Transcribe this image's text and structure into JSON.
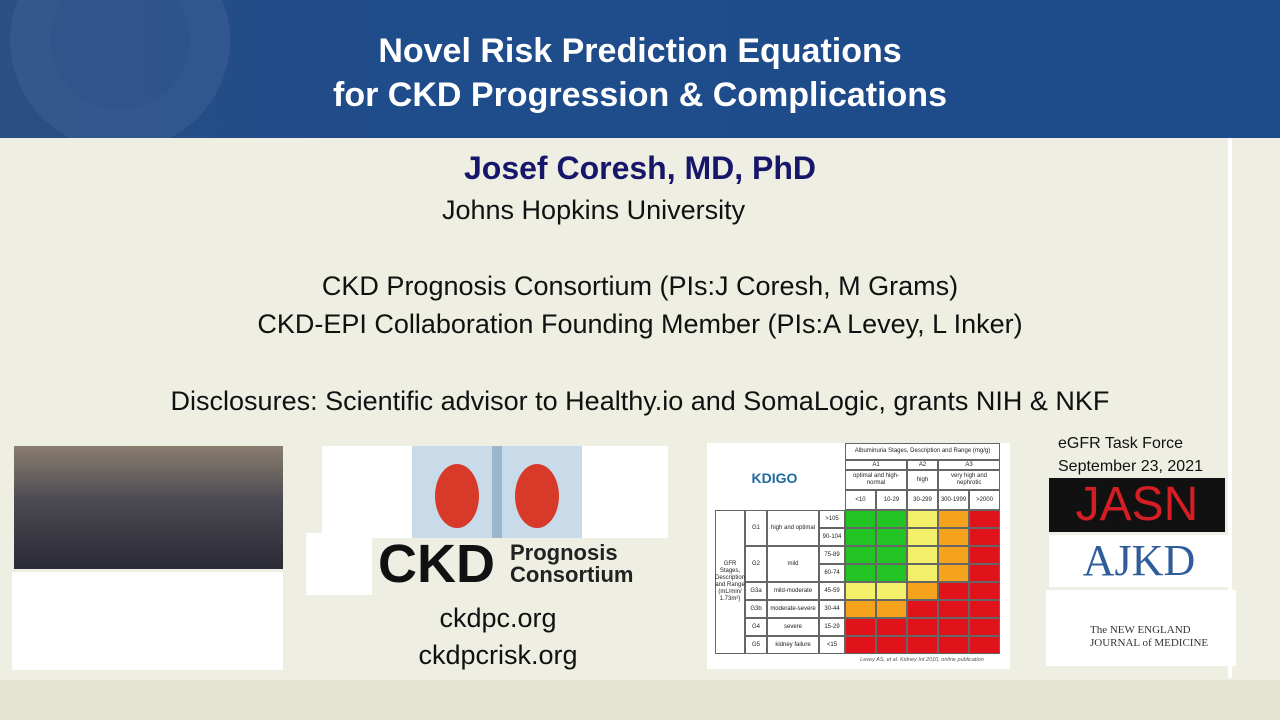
{
  "header": {
    "title_lines": [
      "Novel Risk Prediction Equations",
      "for CKD Progression & Complications"
    ]
  },
  "speaker": {
    "name": "Josef Coresh, MD, PhD",
    "affiliation": "Johns Hopkins University"
  },
  "roles": [
    "CKD Prognosis Consortium (PIs:J Coresh, M Grams)",
    "CKD-EPI Collaboration Founding Member (PIs:A Levey, L Inker)"
  ],
  "disclosures": "Disclosures: Scientific advisor to Healthy.io and SomaLogic, grants NIH & NKF",
  "ckdpc": {
    "logo_main": "CKD",
    "logo_sub": [
      "Prognosis",
      "Consortium"
    ],
    "links": [
      "ckdpc.org",
      "ckdpcrisk.org"
    ]
  },
  "kdigo_table": {
    "logo": "KDIGO",
    "title": "Albuminuria Stages, Description and Range (mg/g)",
    "stages": [
      "A1",
      "A2",
      "A3"
    ],
    "stage_descriptions": [
      "optimal and high-normal",
      "high",
      "very high and nephrotic"
    ],
    "albuminuria_ranges": [
      "<10",
      "10-29",
      "30-299",
      "300-1999",
      ">2000"
    ],
    "gfr_label": "GFR Stages, Description and Range (mL/min/ 1.73m²)",
    "rows": [
      {
        "stage": "G1",
        "description": "high and optimal",
        "ranges": [
          ">105",
          "90-104"
        ]
      },
      {
        "stage": "G2",
        "description": "mild",
        "ranges": [
          "75-89",
          "60-74"
        ]
      },
      {
        "stage": "G3a",
        "description": "mild-moderate",
        "ranges": [
          "45-59"
        ]
      },
      {
        "stage": "G3b",
        "description": "moderate-severe",
        "ranges": [
          "30-44"
        ]
      },
      {
        "stage": "G4",
        "description": "severe",
        "ranges": [
          "15-29"
        ]
      },
      {
        "stage": "G5",
        "description": "kidney failure",
        "ranges": [
          "<15"
        ]
      }
    ],
    "caption": "Levey AS, et al. Kidney Int 2010, online publication"
  },
  "event": {
    "lines": [
      "eGFR Task Force",
      "September 23, 2021"
    ]
  },
  "journals": {
    "jasn": "JASN",
    "ajkd": "AJKD",
    "nejm": [
      "The NEW ENGLAND",
      "JOURNAL of MEDICINE"
    ]
  }
}
